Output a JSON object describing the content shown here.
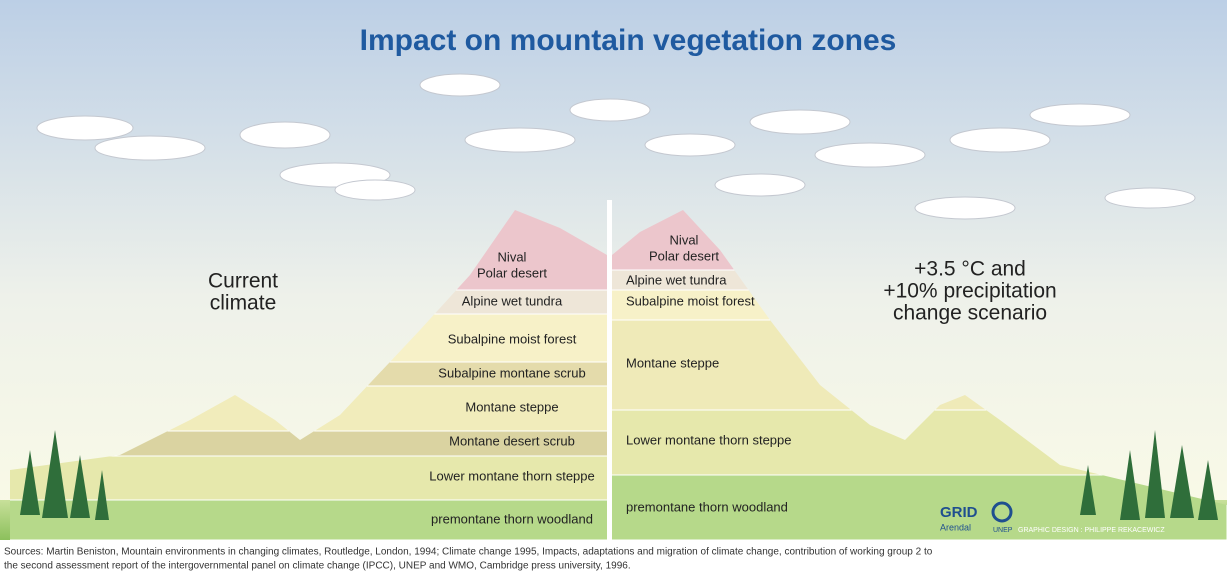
{
  "title": "Impact on mountain vegetation zones",
  "current": {
    "label_lines": [
      "Current",
      "climate"
    ],
    "zones": [
      "Nival",
      "Polar desert",
      "Alpine wet tundra",
      "Subalpine moist forest",
      "Subalpine montane scrub",
      "Montane steppe",
      "Montane desert scrub",
      "Lower montane thorn steppe",
      "premontane thorn woodland"
    ]
  },
  "scenario": {
    "label_lines": [
      "+3.5 °C and",
      "+10% precipitation",
      "change scenario"
    ],
    "zones": [
      "Nival",
      "Polar desert",
      "Alpine wet tundra",
      "Subalpine moist forest",
      "Montane steppe",
      "Lower montane thorn steppe",
      "premontane thorn woodland"
    ]
  },
  "credits": {
    "logo": "GRID",
    "place": "Arendal",
    "org": "UNEP",
    "design": "GRAPHIC DESIGN : PHILIPPE REKACEWICZ"
  },
  "sources": [
    "Sources: Martin Beniston, Mountain environments in changing climates, Routledge, London, 1994; Climate change 1995, Impacts, adaptations and migration of climate change, contribution of working group 2 to",
    "the second assessment report of the intergovernmental panel on climate change (IPCC), UNEP and WMO, Cambridge press university, 1996."
  ]
}
